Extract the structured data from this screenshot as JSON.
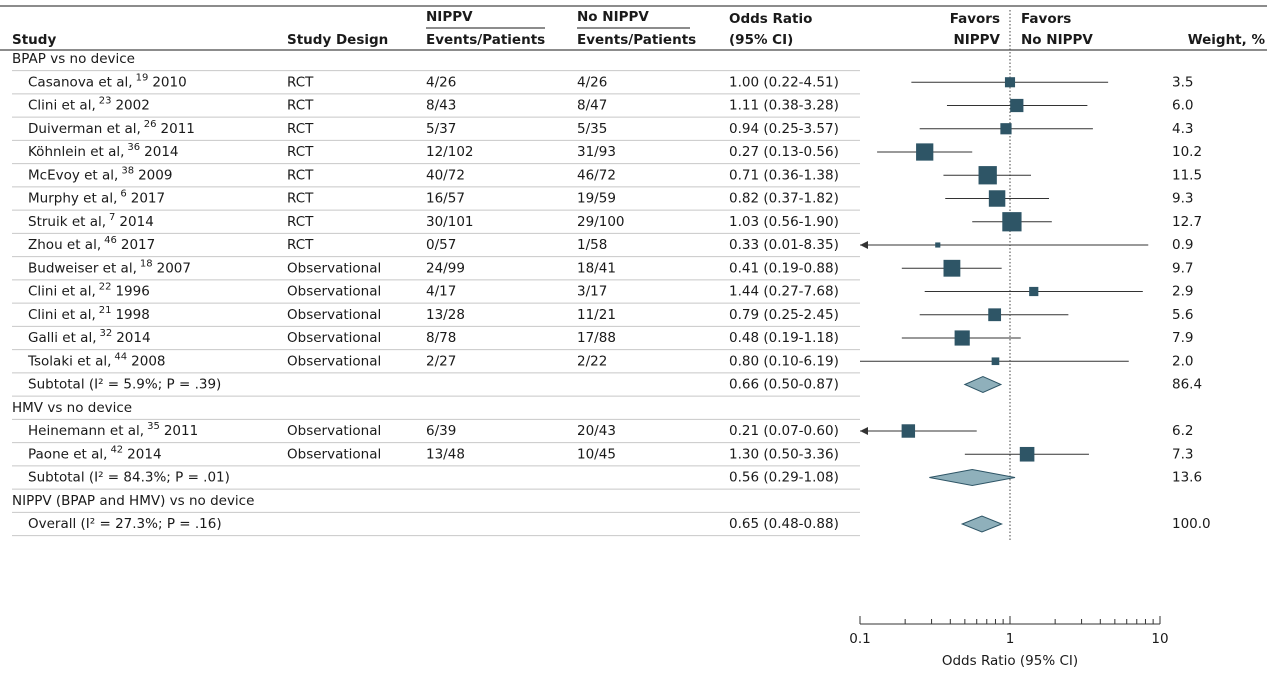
{
  "chart_data": {
    "type": "forest",
    "headers": {
      "study": "Study",
      "design": "Study Design",
      "nippv": [
        "NIPPV",
        "Events/Patients"
      ],
      "no_nippv": [
        "No NIPPV",
        "Events/Patients"
      ],
      "ci": [
        "Odds Ratio",
        "(95% CI)"
      ],
      "weight": "Weight, %"
    },
    "favors_left": [
      "Favors",
      "NIPPV"
    ],
    "favors_right": [
      "Favors",
      "No NIPPV"
    ],
    "xlabel": "Odds Ratio (95% CI)",
    "log_x": true,
    "xlim": [
      0.1,
      10
    ],
    "xticks": [
      0.1,
      1,
      10
    ],
    "xminorticks": [
      0.2,
      0.3,
      0.4,
      0.5,
      0.6,
      0.7,
      0.8,
      0.9,
      2,
      3,
      4,
      5,
      6,
      7,
      8,
      9
    ],
    "ref_line": 1,
    "color": "#2e5566",
    "diamond_color": "#8fb0bb",
    "groups": [
      {
        "name": "BPAP vs no device",
        "studies": [
          {
            "author": "Casanova et al,",
            "ref": "19",
            "year": "2010",
            "design": "RCT",
            "nippv": "4/26",
            "no_nippv": "4/26",
            "or": 1.0,
            "lo": 0.22,
            "hi": 4.51,
            "ci_label": "1.00 (0.22-4.51)",
            "weight": 3.5
          },
          {
            "author": "Clini et al,",
            "ref": "23",
            "year": "2002",
            "design": "RCT",
            "nippv": "8/43",
            "no_nippv": "8/47",
            "or": 1.11,
            "lo": 0.38,
            "hi": 3.28,
            "ci_label": "1.11 (0.38-3.28)",
            "weight": {
              "value": 6,
              "label": "6.0"
            }
          },
          {
            "author": "Duiverman et al,",
            "ref": "26",
            "year": "2011",
            "design": "RCT",
            "nippv": "5/37",
            "no_nippv": "5/35",
            "or": 0.94,
            "lo": 0.25,
            "hi": 3.57,
            "ci_label": "0.94 (0.25-3.57)",
            "weight": 4.3
          },
          {
            "author": "Köhnlein et al,",
            "ref": "36",
            "year": "2014",
            "design": "RCT",
            "nippv": "12/102",
            "no_nippv": "31/93",
            "or": 0.27,
            "lo": 0.13,
            "hi": 0.56,
            "ci_label": "0.27 (0.13-0.56)",
            "weight": 10.2
          },
          {
            "author": "McEvoy et al,",
            "ref": "38",
            "year": "2009",
            "design": "RCT",
            "nippv": "40/72",
            "no_nippv": "46/72",
            "or": 0.71,
            "lo": 0.36,
            "hi": 1.38,
            "ci_label": "0.71 (0.36-1.38)",
            "weight": 11.5
          },
          {
            "author": "Murphy et al,",
            "ref": "6",
            "year": "2017",
            "design": "RCT",
            "nippv": "16/57",
            "no_nippv": "19/59",
            "or": 0.82,
            "lo": 0.37,
            "hi": 1.82,
            "ci_label": "0.82 (0.37-1.82)",
            "weight": 9.3
          },
          {
            "author": "Struik et al,",
            "ref": "7",
            "year": "2014",
            "design": "RCT",
            "nippv": "30/101",
            "no_nippv": "29/100",
            "or": 1.03,
            "lo": 0.56,
            "hi": 1.9,
            "ci_label": "1.03 (0.56-1.90)",
            "weight": 12.7
          },
          {
            "author": "Zhou et al,",
            "ref": "46",
            "year": "2017",
            "design": "RCT",
            "nippv": "0/57",
            "no_nippv": "1/58",
            "or": 0.33,
            "lo": 0.01,
            "hi": 8.35,
            "ci_label": "0.33 (0.01-8.35)",
            "weight": 0.9
          },
          {
            "author": "Budweiser et al,",
            "ref": "18",
            "year": "2007",
            "design": "Observational",
            "nippv": "24/99",
            "no_nippv": "18/41",
            "or": 0.41,
            "lo": 0.19,
            "hi": 0.88,
            "ci_label": "0.41 (0.19-0.88)",
            "weight": 9.7
          },
          {
            "author": "Clini et al,",
            "ref": "22",
            "year": "1996",
            "design": "Observational",
            "nippv": "4/17",
            "no_nippv": "3/17",
            "or": 1.44,
            "lo": 0.27,
            "hi": 7.68,
            "ci_label": "1.44 (0.27-7.68)",
            "weight": 2.9
          },
          {
            "author": "Clini et al,",
            "ref": "21",
            "year": "1998",
            "design": "Observational",
            "nippv": "13/28",
            "no_nippv": "11/21",
            "or": 0.79,
            "lo": 0.25,
            "hi": 2.45,
            "ci_label": "0.79 (0.25-2.45)",
            "weight": 5.6
          },
          {
            "author": "Galli et al,",
            "ref": "32",
            "year": "2014",
            "design": "Observational",
            "nippv": "8/78",
            "no_nippv": "17/88",
            "or": 0.48,
            "lo": 0.19,
            "hi": 1.18,
            "ci_label": "0.48 (0.19-1.18)",
            "weight": 7.9
          },
          {
            "author": "Tsolaki et al,",
            "ref": "44",
            "year": "2008",
            "design": "Observational",
            "nippv": "2/27",
            "no_nippv": "2/22",
            "or": 0.8,
            "lo": 0.1,
            "hi": 6.19,
            "ci_label": "0.80 (0.10-6.19)",
            "weight": {
              "value": 2,
              "label": "2.0"
            }
          }
        ],
        "subtotal": {
          "label": "Subtotal (I² = 5.9%; P = .39)",
          "or": 0.66,
          "lo": 0.5,
          "hi": 0.87,
          "ci_label": "0.66 (0.50-0.87)",
          "weight": 86.4
        }
      },
      {
        "name": "HMV vs no device",
        "studies": [
          {
            "author": "Heinemann et al,",
            "ref": "35",
            "year": "2011",
            "design": "Observational",
            "nippv": "6/39",
            "no_nippv": "20/43",
            "or": 0.21,
            "lo": 0.07,
            "hi": 0.6,
            "ci_label": "0.21 (0.07-0.60)",
            "weight": 6.2
          },
          {
            "author": "Paone et al,",
            "ref": "42",
            "year": "2014",
            "design": "Observational",
            "nippv": "13/48",
            "no_nippv": "10/45",
            "or": 1.3,
            "lo": 0.5,
            "hi": 3.36,
            "ci_label": "1.30 (0.50-3.36)",
            "weight": 7.3
          }
        ],
        "subtotal": {
          "label": "Subtotal (I² = 84.3%; P = .01)",
          "or": 0.56,
          "lo": 0.29,
          "hi": 1.08,
          "ci_label": "0.56 (0.29-1.08)",
          "weight": 13.6
        }
      },
      {
        "name": "NIPPV (BPAP and HMV) vs no device",
        "studies": [],
        "subtotal": {
          "label": "Overall (I² = 27.3%; P = .16)",
          "or": 0.65,
          "lo": 0.48,
          "hi": 0.88,
          "ci_label": "0.65 (0.48-0.88)",
          "weight": {
            "value": 100,
            "label": "100.0"
          }
        }
      }
    ]
  }
}
